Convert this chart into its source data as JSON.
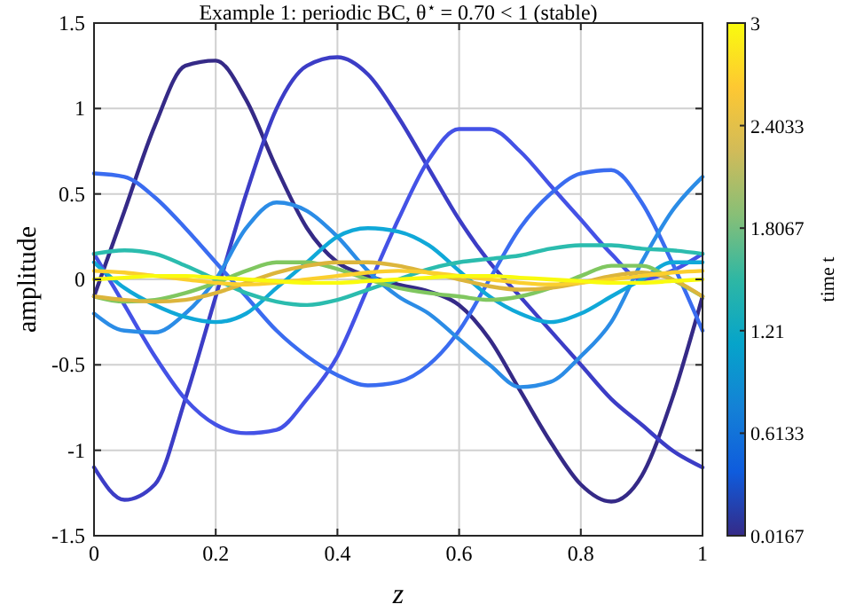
{
  "chart_data": {
    "type": "line",
    "title": "Example 1: periodic BC, θ$^{⋆}$ = 0.70 < 1 (stable)",
    "xlabel": "z",
    "ylabel": "amplitude",
    "clabel": "time t",
    "x": [
      0,
      0.05,
      0.1,
      0.15,
      0.2,
      0.25,
      0.3,
      0.35,
      0.4,
      0.45,
      0.5,
      0.55,
      0.6,
      0.65,
      0.7,
      0.75,
      0.8,
      0.85,
      0.9,
      0.95,
      1
    ],
    "series": [
      {
        "color": "#352a87",
        "values": [
          -0.1,
          0.4,
          0.9,
          1.25,
          1.28,
          1.05,
          0.65,
          0.3,
          0.1,
          0.02,
          -0.03,
          -0.07,
          -0.15,
          -0.35,
          -0.65,
          -0.95,
          -1.2,
          -1.3,
          -1.15,
          -0.7,
          -0.1
        ]
      },
      {
        "color": "#3c3dc6",
        "values": [
          -1.1,
          -1.29,
          -1.2,
          -0.7,
          -0.1,
          0.5,
          1.0,
          1.25,
          1.3,
          1.2,
          0.95,
          0.65,
          0.35,
          0.1,
          -0.1,
          -0.3,
          -0.5,
          -0.7,
          -0.85,
          -1.0,
          -1.1
        ]
      },
      {
        "color": "#4452e6",
        "values": [
          0.15,
          -0.15,
          -0.45,
          -0.7,
          -0.85,
          -0.9,
          -0.88,
          -0.7,
          -0.45,
          -0.05,
          0.35,
          0.7,
          0.88,
          0.88,
          0.75,
          0.55,
          0.35,
          0.15,
          0.0,
          0.05,
          0.15
        ]
      },
      {
        "color": "#3a6cf0",
        "values": [
          0.62,
          0.6,
          0.48,
          0.3,
          0.1,
          -0.1,
          -0.3,
          -0.45,
          -0.56,
          -0.62,
          -0.6,
          -0.5,
          -0.3,
          0.0,
          0.3,
          0.5,
          0.62,
          0.64,
          0.45,
          0.1,
          -0.3
        ]
      },
      {
        "color": "#2b8ce6",
        "values": [
          -0.2,
          -0.3,
          -0.31,
          -0.2,
          0.0,
          0.3,
          0.45,
          0.4,
          0.25,
          0.05,
          -0.1,
          -0.2,
          -0.35,
          -0.5,
          -0.63,
          -0.6,
          -0.45,
          -0.25,
          0.1,
          0.4,
          0.6
        ]
      },
      {
        "color": "#10a8d8",
        "values": [
          0.1,
          -0.05,
          -0.15,
          -0.22,
          -0.25,
          -0.2,
          -0.05,
          0.1,
          0.25,
          0.3,
          0.28,
          0.2,
          0.05,
          -0.1,
          -0.2,
          -0.25,
          -0.2,
          -0.1,
          0.0,
          0.1,
          0.1
        ]
      },
      {
        "color": "#2bbcae",
        "values": [
          0.15,
          0.17,
          0.15,
          0.08,
          0.0,
          -0.08,
          -0.13,
          -0.15,
          -0.12,
          -0.06,
          0.0,
          0.06,
          0.1,
          0.12,
          0.14,
          0.18,
          0.2,
          0.2,
          0.18,
          0.17,
          0.15
        ]
      },
      {
        "color": "#80c760",
        "values": [
          -0.1,
          -0.13,
          -0.12,
          -0.08,
          -0.02,
          0.05,
          0.1,
          0.1,
          0.06,
          0.0,
          -0.05,
          -0.08,
          -0.1,
          -0.12,
          -0.1,
          -0.05,
          0.02,
          0.08,
          0.08,
          0.0,
          -0.1
        ]
      },
      {
        "color": "#dcb53c",
        "values": [
          -0.1,
          -0.12,
          -0.13,
          -0.12,
          -0.08,
          -0.02,
          0.04,
          0.08,
          0.1,
          0.1,
          0.08,
          0.04,
          0.0,
          -0.04,
          -0.06,
          -0.05,
          -0.02,
          0.02,
          0.04,
          0.0,
          -0.1
        ]
      },
      {
        "color": "#fbcf2e",
        "values": [
          0.05,
          0.04,
          0.02,
          0.0,
          -0.02,
          -0.03,
          -0.02,
          0.0,
          0.02,
          0.04,
          0.05,
          0.04,
          0.02,
          0.0,
          -0.02,
          -0.03,
          -0.02,
          0.0,
          0.02,
          0.04,
          0.05
        ]
      },
      {
        "color": "#f9fb0e",
        "values": [
          0.0,
          0.01,
          0.02,
          0.02,
          0.01,
          0.0,
          -0.01,
          -0.02,
          -0.02,
          -0.01,
          0.0,
          0.01,
          0.02,
          0.02,
          0.01,
          0.0,
          -0.01,
          -0.02,
          -0.02,
          -0.01,
          0.0
        ]
      }
    ],
    "xlim": [
      0,
      1
    ],
    "xticks": [
      0,
      0.2,
      0.4,
      0.6,
      0.8,
      1
    ],
    "ylim": [
      -1.5,
      1.5
    ],
    "yticks": [
      -1.5,
      -1,
      -0.5,
      0,
      0.5,
      1,
      1.5
    ],
    "clim": [
      0.0167,
      3
    ],
    "cticks": [
      0.0167,
      0.6133,
      1.21,
      1.8067,
      2.4033,
      3
    ],
    "grid": true
  }
}
